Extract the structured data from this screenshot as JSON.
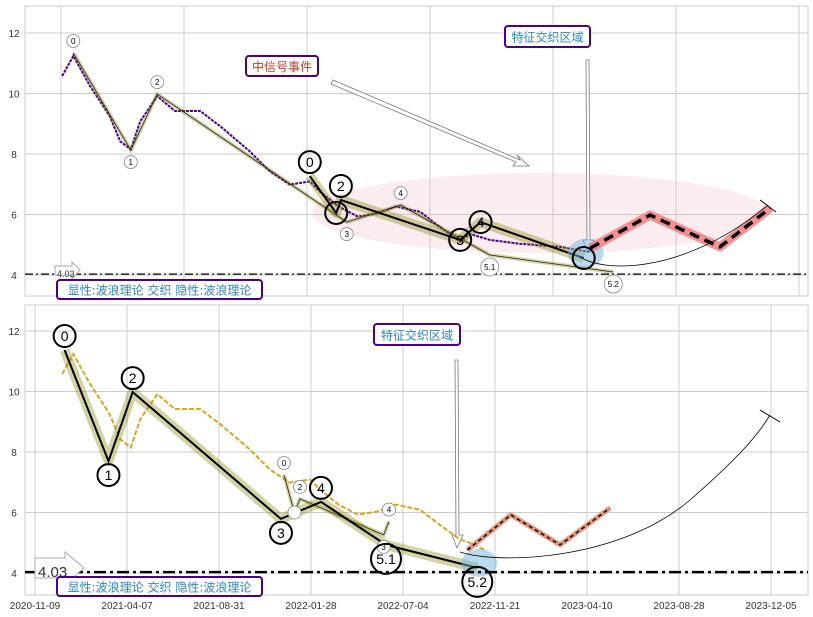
{
  "chart_data": [
    {
      "type": "line",
      "panel": "top",
      "ylim": [
        3.3,
        12.9
      ],
      "yticks": [
        4,
        6,
        8,
        10,
        12
      ],
      "grid": true,
      "series": [
        {
          "name": "price",
          "color": "#4b0082",
          "points": [
            [
              "2020-12-23",
              10.58
            ],
            [
              "2021-01-10",
              11.24
            ],
            [
              "2021-02-06",
              10.25
            ],
            [
              "2021-03-10",
              9.25
            ],
            [
              "2021-03-27",
              8.42
            ],
            [
              "2021-04-13",
              8.15
            ],
            [
              "2021-04-28",
              9.08
            ],
            [
              "2021-05-25",
              9.91
            ],
            [
              "2021-06-22",
              9.42
            ],
            [
              "2021-08-01",
              9.42
            ],
            [
              "2021-09-02",
              8.92
            ],
            [
              "2021-10-20",
              8.09
            ],
            [
              "2021-11-22",
              7.42
            ],
            [
              "2021-12-24",
              6.99
            ],
            [
              "2022-01-26",
              7.09
            ],
            [
              "2022-02-12",
              6.76
            ],
            [
              "2022-03-16",
              6.26
            ],
            [
              "2022-04-18",
              5.93
            ],
            [
              "2022-05-20",
              6.03
            ],
            [
              "2022-06-22",
              6.26
            ],
            [
              "2022-07-30",
              6.09
            ],
            [
              "2022-08-29",
              5.59
            ],
            [
              "2022-09-29",
              5.1
            ],
            [
              "2022-10-14",
              5.36
            ],
            [
              "2022-11-13",
              5.16
            ],
            [
              "2022-12-29",
              5.03
            ],
            [
              "2023-02-28",
              4.93
            ],
            [
              "2023-04-15",
              4.76
            ]
          ]
        },
        {
          "name": "forecast",
          "color": "#f08080",
          "points": [
            [
              "2023-04-15",
              4.89
            ],
            [
              "2023-07-15",
              5.98
            ],
            [
              "2023-10-11",
              4.93
            ],
            [
              "2023-12-04",
              6.21
            ]
          ]
        }
      ],
      "small_waves": [
        {
          "label": "0",
          "date": "2021-01-10",
          "value": 11.34,
          "pos": "above"
        },
        {
          "label": "1",
          "date": "2021-04-13",
          "value": 8.13,
          "pos": "below"
        },
        {
          "label": "2",
          "date": "2021-05-25",
          "value": 9.98,
          "pos": "above"
        },
        {
          "label": "3",
          "date": "2022-03-30",
          "value": 5.75,
          "pos": "below"
        },
        {
          "label": "4",
          "date": "2022-06-30",
          "value": 6.31,
          "pos": "above"
        },
        {
          "label": "5.1",
          "date": "2022-11-13",
          "value": 4.66,
          "pos": "below"
        },
        {
          "label": "5.2",
          "date": "2023-05-20",
          "value": 4.1,
          "pos": "below"
        }
      ],
      "big_waves": [
        {
          "label": "0",
          "date": "2022-01-26",
          "value": 7.27,
          "pos": "above"
        },
        {
          "label": "",
          "date": "2022-03-12",
          "value": 6.05,
          "pos": "on"
        },
        {
          "label": "2",
          "date": "2022-03-20",
          "value": 6.48,
          "pos": "above"
        },
        {
          "label": "3",
          "date": "2022-09-29",
          "value": 5.16,
          "pos": "on"
        },
        {
          "label": "4",
          "date": "2022-10-30",
          "value": 5.75,
          "pos": "on"
        },
        {
          "label": "",
          "date": "2023-04-05",
          "value": 4.56,
          "pos": "on"
        }
      ],
      "hline": {
        "value": 4.03,
        "label": "4.03"
      },
      "annotations": {
        "signal_event": "中信号事件",
        "feature_zone": "特征交织区域",
        "legend_box": "显性:波浪理论 交织 隐性:波浪理论"
      }
    },
    {
      "type": "line",
      "panel": "bottom",
      "ylim": [
        3.3,
        12.9
      ],
      "yticks": [
        4,
        6,
        8,
        10,
        12
      ],
      "grid": true,
      "xticks": [
        "2020-11-09",
        "2021-04-07",
        "2021-08-31",
        "2022-01-28",
        "2022-07-04",
        "2022-11-21",
        "2023-04-10",
        "2023-08-28",
        "2023-12-05"
      ],
      "series": [
        {
          "name": "price",
          "color": "#daa520",
          "points": [
            [
              "2020-12-23",
              10.58
            ],
            [
              "2021-01-10",
              11.24
            ],
            [
              "2021-02-06",
              10.25
            ],
            [
              "2021-03-10",
              9.25
            ],
            [
              "2021-03-27",
              8.42
            ],
            [
              "2021-04-13",
              8.15
            ],
            [
              "2021-04-28",
              9.08
            ],
            [
              "2021-05-25",
              9.91
            ],
            [
              "2021-06-22",
              9.42
            ],
            [
              "2021-08-01",
              9.42
            ],
            [
              "2021-09-02",
              8.92
            ],
            [
              "2021-10-20",
              8.09
            ],
            [
              "2021-11-22",
              7.42
            ],
            [
              "2021-12-24",
              6.99
            ],
            [
              "2022-01-26",
              7.09
            ],
            [
              "2022-02-12",
              6.76
            ],
            [
              "2022-03-16",
              6.26
            ],
            [
              "2022-04-18",
              5.93
            ],
            [
              "2022-05-20",
              6.03
            ],
            [
              "2022-06-22",
              6.26
            ],
            [
              "2022-07-30",
              6.09
            ],
            [
              "2022-08-29",
              5.59
            ],
            [
              "2022-09-29",
              5.1
            ],
            [
              "2022-10-14",
              5.0
            ],
            [
              "2022-11-05",
              4.76
            ]
          ]
        },
        {
          "name": "forecast",
          "color": "#e9967a",
          "points": [
            [
              "2022-10-10",
              4.76
            ],
            [
              "2022-12-15",
              5.92
            ],
            [
              "2023-02-28",
              4.93
            ],
            [
              "2023-05-15",
              6.15
            ]
          ]
        }
      ],
      "small_waves": [
        {
          "label": "0",
          "date": "2021-12-15",
          "value": 7.24,
          "pos": "above"
        },
        {
          "label": "",
          "date": "2022-01-01",
          "value": 6.0,
          "pos": "on"
        },
        {
          "label": "2",
          "date": "2022-01-10",
          "value": 6.45,
          "pos": "above"
        },
        {
          "label": "3",
          "date": "2022-06-01",
          "value": 5.26,
          "pos": "below"
        },
        {
          "label": "4",
          "date": "2022-06-10",
          "value": 5.7,
          "pos": "above"
        }
      ],
      "big_waves": [
        {
          "label": "0",
          "date": "2020-12-27",
          "value": 11.37,
          "pos": "above"
        },
        {
          "label": "1",
          "date": "2021-03-08",
          "value": 7.7,
          "pos": "below"
        },
        {
          "label": "2",
          "date": "2021-04-16",
          "value": 9.98,
          "pos": "above"
        },
        {
          "label": "3",
          "date": "2021-12-10",
          "value": 5.79,
          "pos": "below"
        },
        {
          "label": "4",
          "date": "2022-02-14",
          "value": 6.35,
          "pos": "above"
        },
        {
          "label": "5.1",
          "date": "2022-06-05",
          "value": 4.93,
          "pos": "below"
        },
        {
          "label": "5.2",
          "date": "2022-10-25",
          "value": 4.17,
          "pos": "below"
        }
      ],
      "hline": {
        "value": 4.03,
        "label": "4.03"
      },
      "annotations": {
        "feature_zone": "特征交织区域",
        "legend_box": "显性:波浪理论 交织 隐性:波浪理论"
      }
    }
  ]
}
